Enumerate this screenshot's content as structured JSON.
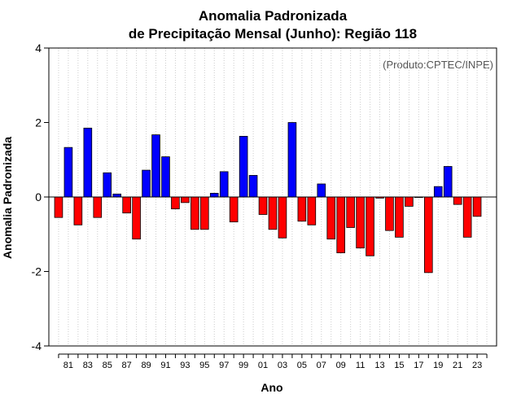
{
  "chart_data": {
    "type": "bar",
    "title": "Anomalia Padronizada",
    "subtitle": "de Precipitação Mensal (Junho): Região 118",
    "xlabel": "Ano",
    "ylabel": "Anomalia Padronizada",
    "credit": "(Produto:CPTEC/INPE)",
    "ylim": [
      -4,
      4
    ],
    "yticks": [
      -4,
      -2,
      0,
      2,
      4
    ],
    "grid": "vertical dotted",
    "colors": {
      "positive": "#0000ff",
      "negative": "#ff0000",
      "grid": "#cccccc"
    },
    "years": [
      1980,
      1981,
      1982,
      1983,
      1984,
      1985,
      1986,
      1987,
      1988,
      1989,
      1990,
      1991,
      1992,
      1993,
      1994,
      1995,
      1996,
      1997,
      1998,
      1999,
      2000,
      2001,
      2002,
      2003,
      2004,
      2005,
      2006,
      2007,
      2008,
      2009,
      2010,
      2011,
      2012,
      2013,
      2014,
      2015,
      2016,
      2017,
      2018,
      2019,
      2020,
      2021,
      2022,
      2023,
      2024
    ],
    "xtick_labels": [
      "81",
      "83",
      "85",
      "87",
      "89",
      "91",
      "93",
      "95",
      "97",
      "99",
      "01",
      "03",
      "05",
      "07",
      "09",
      "11",
      "13",
      "15",
      "17",
      "19",
      "21",
      "23"
    ],
    "xtick_years": [
      1981,
      1983,
      1985,
      1987,
      1989,
      1991,
      1993,
      1995,
      1997,
      1999,
      2001,
      2003,
      2005,
      2007,
      2009,
      2011,
      2013,
      2015,
      2017,
      2019,
      2021,
      2023
    ],
    "values": [
      -0.55,
      1.33,
      -0.75,
      1.85,
      -0.55,
      0.65,
      0.08,
      -0.43,
      -1.13,
      0.72,
      1.67,
      1.08,
      -0.32,
      -0.15,
      -0.87,
      -0.87,
      0.1,
      0.68,
      -0.67,
      1.63,
      0.58,
      -0.47,
      -0.87,
      -1.1,
      2.0,
      -0.65,
      -0.75,
      0.35,
      -1.13,
      -1.5,
      -0.82,
      -1.37,
      -1.58,
      -0.03,
      -0.9,
      -1.08,
      -0.25,
      -0.01,
      -2.03,
      0.28,
      0.82,
      -0.2,
      -1.08,
      -0.52,
      null
    ]
  }
}
